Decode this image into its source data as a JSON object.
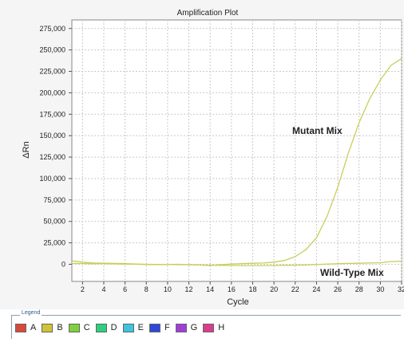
{
  "chart_data": {
    "type": "line",
    "title": "Amplification Plot",
    "xlabel": "Cycle",
    "ylabel": "ΔRn",
    "xlim": [
      1,
      32
    ],
    "ylim": [
      -20000,
      285000
    ],
    "xticks": [
      2,
      4,
      6,
      8,
      10,
      12,
      14,
      16,
      18,
      20,
      22,
      24,
      26,
      28,
      30,
      32
    ],
    "yticks": [
      0,
      25000,
      50000,
      75000,
      100000,
      125000,
      150000,
      175000,
      200000,
      225000,
      250000,
      275000
    ],
    "ytick_labels": [
      "0",
      "25,000",
      "50,000",
      "75,000",
      "100,000",
      "125,000",
      "150,000",
      "175,000",
      "200,000",
      "225,000",
      "250,000",
      "275,000"
    ],
    "grid": true,
    "series": [
      {
        "name": "Mutant Mix",
        "color": "#c8cf58",
        "x": [
          1,
          2,
          3,
          4,
          5,
          6,
          7,
          8,
          9,
          10,
          11,
          12,
          13,
          14,
          15,
          16,
          17,
          18,
          19,
          20,
          21,
          22,
          23,
          24,
          25,
          26,
          27,
          28,
          29,
          30,
          31,
          32
        ],
        "y": [
          1000,
          800,
          600,
          700,
          500,
          200,
          0,
          -300,
          -500,
          -300,
          0,
          -500,
          -800,
          -1500,
          -500,
          300,
          800,
          1200,
          1500,
          2500,
          4500,
          9000,
          17000,
          31000,
          56000,
          90000,
          130000,
          165000,
          193000,
          215000,
          232000,
          240000
        ]
      },
      {
        "name": "Wild-Type Mix",
        "color": "#c8cf58",
        "x": [
          1,
          2,
          3,
          4,
          5,
          6,
          7,
          8,
          9,
          10,
          11,
          12,
          13,
          14,
          15,
          16,
          17,
          18,
          19,
          20,
          21,
          22,
          23,
          24,
          25,
          26,
          27,
          28,
          29,
          30,
          31,
          32
        ],
        "y": [
          4000,
          2500,
          1500,
          1200,
          1000,
          800,
          400,
          0,
          -200,
          -400,
          -500,
          -600,
          -800,
          -1000,
          -1200,
          -1400,
          -1500,
          -1500,
          -1500,
          -1400,
          -1200,
          -1000,
          -800,
          -300,
          200,
          600,
          1000,
          1200,
          1500,
          1800,
          3200,
          3500
        ]
      }
    ],
    "annotations": [
      "Mutant Mix",
      "Wild-Type Mix"
    ]
  },
  "legend": {
    "title": "Legend",
    "items": [
      {
        "label": "A",
        "color": "#d64a3a"
      },
      {
        "label": "B",
        "color": "#cfc438"
      },
      {
        "label": "C",
        "color": "#7ed03c"
      },
      {
        "label": "D",
        "color": "#2ecf7e"
      },
      {
        "label": "E",
        "color": "#3ec3e0"
      },
      {
        "label": "F",
        "color": "#3048d8"
      },
      {
        "label": "G",
        "color": "#a03ed8"
      },
      {
        "label": "H",
        "color": "#d83e8c"
      }
    ]
  }
}
